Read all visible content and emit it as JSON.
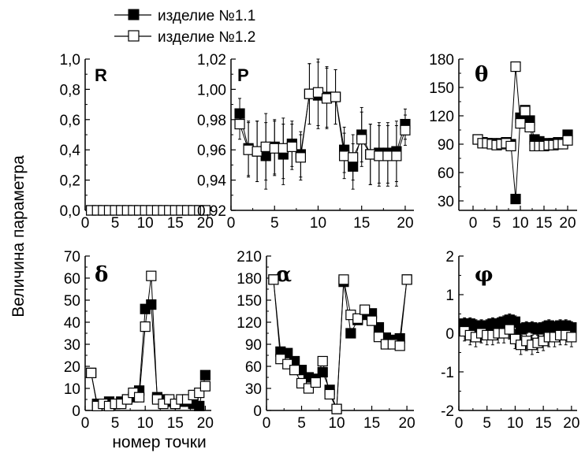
{
  "figure": {
    "ylabel": "Величина параметра",
    "xlabel": "номер точки"
  },
  "legend": [
    {
      "label": "изделие №1.1",
      "marker": "filled-square"
    },
    {
      "label": "изделие №1.2",
      "marker": "open-square"
    }
  ],
  "chart_data": [
    {
      "type": "scatter",
      "title": "R",
      "xlabel": "",
      "ylabel": "",
      "xlim": [
        0,
        21
      ],
      "ylim": [
        0,
        1
      ],
      "xticks": [
        "0",
        "5",
        "10",
        "15",
        "20"
      ],
      "yticks": [
        "0,0",
        "0,2",
        "0,4",
        "0,6",
        "0,8",
        "1,0"
      ],
      "series": [
        {
          "name": "изделие №1.1",
          "marker": "filled",
          "connect": false,
          "x": [
            1,
            2,
            3,
            4,
            5,
            6,
            7,
            8,
            9,
            10,
            11,
            12,
            13,
            14,
            15,
            16,
            17,
            18,
            19,
            20
          ],
          "y": [
            0,
            0,
            0,
            0,
            0,
            0,
            0,
            0,
            0,
            0,
            0,
            0,
            0,
            0,
            0,
            0,
            0,
            0,
            0,
            0
          ]
        },
        {
          "name": "изделие №1.2",
          "marker": "open",
          "connect": false,
          "x": [
            1,
            2,
            3,
            4,
            5,
            6,
            7,
            8,
            9,
            10,
            11,
            12,
            13,
            14,
            15,
            16,
            17,
            18,
            19,
            20
          ],
          "y": [
            0,
            0,
            0,
            0,
            0,
            0,
            0,
            0,
            0,
            0,
            0,
            0,
            0,
            0,
            0,
            0,
            0,
            0,
            0,
            0
          ],
          "err": [
            0.02,
            0.02,
            0.02,
            0.02,
            0.02,
            0.02,
            0.02,
            0.02,
            0.02,
            0.02,
            0.02,
            0.02,
            0.02,
            0.02,
            0.02,
            0.02,
            0.02,
            0.02,
            0.02,
            0.02
          ]
        }
      ]
    },
    {
      "type": "scatter",
      "title": "P",
      "xlabel": "",
      "ylabel": "",
      "xlim": [
        0,
        21
      ],
      "ylim": [
        0.92,
        1.02
      ],
      "xticks": [
        "0",
        "5",
        "10",
        "15",
        "20"
      ],
      "yticks": [
        "0,92",
        "0,94",
        "0,96",
        "0,98",
        "1,00",
        "1,02"
      ],
      "series": [
        {
          "name": "изделие №1.1",
          "marker": "filled",
          "connect": true,
          "x": [
            1,
            2,
            3,
            4,
            5,
            6,
            7,
            8,
            9,
            10,
            11,
            12,
            13,
            14,
            15,
            16,
            17,
            18,
            19,
            20
          ],
          "y": [
            0.984,
            0.961,
            0.959,
            0.956,
            0.962,
            0.957,
            0.964,
            0.957,
            0.997,
            0.996,
            0.995,
            0.995,
            0.96,
            0.949,
            0.97,
            0.957,
            0.958,
            0.958,
            0.959,
            0.977
          ],
          "err": [
            0.01,
            0.018,
            0.02,
            0.022,
            0.018,
            0.02,
            0.015,
            0.015,
            0.02,
            0.022,
            0.02,
            0.018,
            0.015,
            0.015,
            0.018,
            0.02,
            0.02,
            0.02,
            0.02,
            0.01
          ]
        },
        {
          "name": "изделие №1.2",
          "marker": "open",
          "connect": true,
          "x": [
            1,
            2,
            3,
            4,
            5,
            6,
            7,
            8,
            9,
            10,
            11,
            12,
            13,
            14,
            15,
            16,
            17,
            18,
            19,
            20
          ],
          "y": [
            0.977,
            0.96,
            0.959,
            0.962,
            0.961,
            0.961,
            0.962,
            0.955,
            0.997,
            0.998,
            0.994,
            0.995,
            0.956,
            0.955,
            0.967,
            0.957,
            0.956,
            0.956,
            0.956,
            0.973
          ],
          "err": [
            0.01,
            0.018,
            0.02,
            0.022,
            0.018,
            0.02,
            0.015,
            0.015,
            0.02,
            0.022,
            0.02,
            0.018,
            0.015,
            0.015,
            0.018,
            0.02,
            0.02,
            0.02,
            0.02,
            0.01
          ]
        }
      ]
    },
    {
      "type": "scatter",
      "title": "θ",
      "xlabel": "",
      "ylabel": "",
      "xlim": [
        -3,
        22
      ],
      "ylim": [
        20,
        180
      ],
      "xticks": [
        "0",
        "5",
        "10",
        "15",
        "20"
      ],
      "yticks": [
        "30",
        "60",
        "90",
        "120",
        "150",
        "180"
      ],
      "series": [
        {
          "name": "изделие №1.1",
          "marker": "filled",
          "connect": true,
          "x": [
            1,
            2,
            3,
            4,
            5,
            6,
            7,
            8,
            9,
            10,
            11,
            12,
            13,
            14,
            15,
            16,
            17,
            18,
            19,
            20
          ],
          "y": [
            95,
            92,
            91,
            91,
            90,
            91,
            92,
            90,
            32,
            118,
            126,
            115,
            95,
            93,
            90,
            91,
            91,
            92,
            91,
            100
          ]
        },
        {
          "name": "изделие №1.2",
          "marker": "open",
          "connect": true,
          "x": [
            1,
            2,
            3,
            4,
            5,
            6,
            7,
            8,
            9,
            10,
            11,
            12,
            13,
            14,
            15,
            16,
            17,
            18,
            19,
            20
          ],
          "y": [
            95,
            91,
            91,
            90,
            89,
            90,
            91,
            88,
            172,
            112,
            125,
            108,
            88,
            88,
            88,
            89,
            89,
            90,
            90,
            94
          ]
        }
      ]
    },
    {
      "type": "scatter",
      "title": "δ",
      "xlabel": "",
      "ylabel": "",
      "xlim": [
        0,
        21
      ],
      "ylim": [
        0,
        70
      ],
      "xticks": [
        "0",
        "5",
        "10",
        "15",
        "20"
      ],
      "yticks": [
        "0",
        "10",
        "20",
        "30",
        "40",
        "50",
        "60",
        "70"
      ],
      "series": [
        {
          "name": "изделие №1.1",
          "marker": "filled",
          "connect": true,
          "x": [
            1,
            2,
            3,
            4,
            5,
            6,
            7,
            8,
            9,
            10,
            11,
            12,
            13,
            14,
            15,
            16,
            17,
            18,
            19,
            20
          ],
          "y": [
            17,
            3,
            3,
            4,
            3,
            4,
            5,
            6,
            9,
            46,
            48,
            6,
            5,
            4,
            3,
            4,
            4,
            3,
            2,
            16
          ]
        },
        {
          "name": "изделие №1.2",
          "marker": "open",
          "connect": true,
          "x": [
            1,
            2,
            3,
            4,
            5,
            6,
            7,
            8,
            9,
            10,
            11,
            12,
            13,
            14,
            15,
            16,
            17,
            18,
            19,
            20
          ],
          "y": [
            17,
            2,
            3,
            2,
            3,
            3,
            5,
            8,
            6,
            38,
            61,
            5,
            3,
            5,
            3,
            5,
            5,
            7,
            8,
            11
          ],
          "err": [
            1.5,
            1,
            1,
            1,
            1,
            1,
            1,
            1,
            1,
            1.5,
            1.5,
            1,
            1,
            1,
            1,
            1,
            1,
            1,
            1,
            1.5
          ]
        }
      ]
    },
    {
      "type": "scatter",
      "title": "α",
      "xlabel": "",
      "ylabel": "",
      "xlim": [
        0,
        21
      ],
      "ylim": [
        0,
        210
      ],
      "xticks": [
        "0",
        "5",
        "10",
        "15",
        "20"
      ],
      "yticks": [
        "0",
        "30",
        "60",
        "90",
        "120",
        "150",
        "180",
        "210"
      ],
      "series": [
        {
          "name": "изделие №1.1",
          "marker": "filled",
          "connect": true,
          "x": [
            1,
            2,
            3,
            4,
            5,
            6,
            7,
            8,
            9,
            10,
            11,
            12,
            13,
            14,
            15,
            16,
            17,
            18,
            19,
            20
          ],
          "y": [
            178,
            80,
            78,
            67,
            55,
            45,
            43,
            52,
            28,
            2,
            175,
            105,
            123,
            130,
            132,
            113,
            99,
            96,
            98,
            178
          ]
        },
        {
          "name": "изделие №1.2",
          "marker": "open",
          "connect": true,
          "x": [
            1,
            2,
            3,
            4,
            5,
            6,
            7,
            8,
            9,
            10,
            11,
            12,
            13,
            14,
            15,
            16,
            17,
            18,
            19,
            20
          ],
          "y": [
            178,
            70,
            63,
            55,
            37,
            30,
            38,
            67,
            22,
            2,
            178,
            130,
            125,
            137,
            122,
            100,
            90,
            90,
            88,
            178
          ],
          "err": [
            4,
            4,
            4,
            4,
            4,
            4,
            4,
            4,
            4,
            4,
            4,
            4,
            4,
            4,
            4,
            4,
            4,
            4,
            4,
            4
          ]
        }
      ]
    },
    {
      "type": "scatter",
      "title": "φ",
      "xlabel": "",
      "ylabel": "",
      "xlim": [
        0,
        21
      ],
      "ylim": [
        -2,
        2
      ],
      "xticks": [
        "0",
        "5",
        "10",
        "15",
        "20"
      ],
      "yticks": [
        "-2",
        "-1",
        "0",
        "1",
        "2"
      ],
      "series": [
        {
          "name": "изделие №1.1",
          "marker": "filled",
          "connect": true,
          "x": [
            1,
            2,
            3,
            4,
            5,
            6,
            7,
            8,
            9,
            10,
            11,
            12,
            13,
            14,
            15,
            16,
            17,
            18,
            19,
            20
          ],
          "y": [
            0.25,
            0.25,
            0.2,
            0.2,
            0.2,
            0.25,
            0.25,
            0.3,
            0.35,
            0.3,
            0.1,
            0.15,
            0.15,
            0.1,
            0.15,
            0.2,
            0.15,
            0.2,
            0.2,
            0.15
          ],
          "err": [
            0.15,
            0.15,
            0.15,
            0.15,
            0.15,
            0.15,
            0.15,
            0.15,
            0.15,
            0.15,
            0.15,
            0.15,
            0.15,
            0.15,
            0.15,
            0.15,
            0.15,
            0.15,
            0.15,
            0.15
          ]
        },
        {
          "name": "изделие №1.2",
          "marker": "open",
          "connect": true,
          "x": [
            1,
            2,
            3,
            4,
            5,
            6,
            7,
            8,
            9,
            10,
            11,
            12,
            13,
            14,
            15,
            16,
            17,
            18,
            19,
            20
          ],
          "y": [
            0.05,
            -0.05,
            -0.1,
            0.0,
            -0.05,
            -0.05,
            0.0,
            0.0,
            0.1,
            -0.15,
            -0.3,
            -0.2,
            -0.3,
            -0.25,
            -0.2,
            -0.1,
            -0.1,
            -0.05,
            -0.05,
            -0.1
          ],
          "err": [
            0.25,
            0.25,
            0.25,
            0.25,
            0.25,
            0.25,
            0.25,
            0.25,
            0.25,
            0.25,
            0.25,
            0.25,
            0.25,
            0.25,
            0.25,
            0.25,
            0.25,
            0.25,
            0.25,
            0.25
          ]
        }
      ]
    }
  ]
}
